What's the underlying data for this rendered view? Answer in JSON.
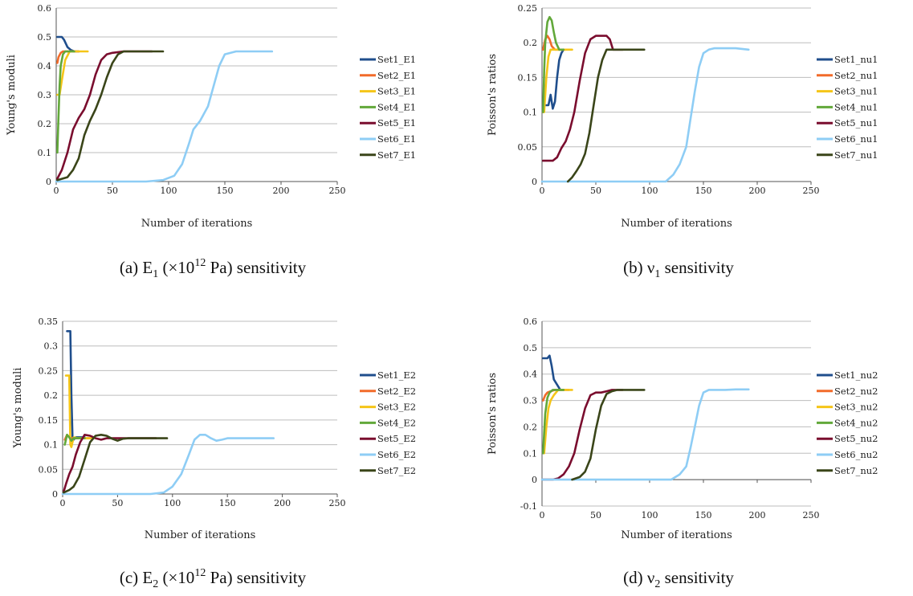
{
  "colors": {
    "Set1": "#1f4e8c",
    "Set2": "#f26b2a",
    "Set3": "#f5c518",
    "Set4": "#62a83a",
    "Set5": "#7a0d2e",
    "Set6": "#8ecdf5",
    "Set7": "#3a4519"
  },
  "chart_data": [
    {
      "type": "line",
      "ylabel": "Young's moduli",
      "xlabel": "Number  of iterations",
      "caption_letter": "(a)",
      "caption_symbol": "E",
      "caption_sub": "1",
      "caption_rest_1": " (×10",
      "caption_sup": "12",
      "caption_rest_2": " Pa) sensitivity",
      "xlim": [
        0,
        250
      ],
      "ylim": [
        0,
        0.6
      ],
      "xticks": [
        "0",
        "50",
        "100",
        "150",
        "200",
        "250"
      ],
      "yticks": [
        "0",
        "0.1",
        "0.2",
        "0.3",
        "0.4",
        "0.5",
        "0.6"
      ],
      "series": [
        {
          "name": "Set1_E1",
          "color_key": "Set1",
          "x": [
            1,
            5,
            7,
            10,
            13,
            16,
            20
          ],
          "y": [
            0.5,
            0.5,
            0.49,
            0.465,
            0.455,
            0.45,
            0.45
          ]
        },
        {
          "name": "Set2_E1",
          "color_key": "Set2",
          "x": [
            1,
            2,
            4,
            6,
            10,
            15,
            20
          ],
          "y": [
            0.41,
            0.43,
            0.445,
            0.45,
            0.45,
            0.45,
            0.45
          ]
        },
        {
          "name": "Set3_E1",
          "color_key": "Set3",
          "x": [
            1,
            3,
            5,
            8,
            12,
            18,
            28
          ],
          "y": [
            0.3,
            0.3,
            0.35,
            0.42,
            0.45,
            0.45,
            0.45
          ]
        },
        {
          "name": "Set4_E1",
          "color_key": "Set4",
          "x": [
            1,
            2,
            3,
            4,
            6,
            8,
            12,
            16
          ],
          "y": [
            0.1,
            0.22,
            0.33,
            0.4,
            0.44,
            0.45,
            0.45,
            0.45
          ]
        },
        {
          "name": "Set5_E1",
          "color_key": "Set5",
          "x": [
            1,
            5,
            10,
            15,
            20,
            25,
            30,
            35,
            40,
            45,
            50,
            60,
            70,
            80,
            85
          ],
          "y": [
            0.01,
            0.04,
            0.1,
            0.18,
            0.22,
            0.25,
            0.3,
            0.37,
            0.42,
            0.44,
            0.445,
            0.45,
            0.45,
            0.45,
            0.45
          ]
        },
        {
          "name": "Set6_E1",
          "color_key": "Set6",
          "x": [
            0,
            80,
            95,
            105,
            112,
            118,
            122,
            128,
            135,
            140,
            145,
            150,
            160,
            175,
            192
          ],
          "y": [
            0,
            0,
            0.005,
            0.02,
            0.06,
            0.13,
            0.18,
            0.21,
            0.26,
            0.33,
            0.4,
            0.44,
            0.45,
            0.45,
            0.45
          ]
        },
        {
          "name": "Set7_E1",
          "color_key": "Set7",
          "x": [
            1,
            10,
            15,
            20,
            25,
            30,
            35,
            40,
            45,
            50,
            55,
            60,
            70,
            80,
            95
          ],
          "y": [
            0.005,
            0.015,
            0.04,
            0.08,
            0.16,
            0.21,
            0.25,
            0.3,
            0.36,
            0.41,
            0.44,
            0.45,
            0.45,
            0.45,
            0.45
          ]
        }
      ]
    },
    {
      "type": "line",
      "ylabel": "Poisson's ratios",
      "xlabel": "Number of iterations",
      "caption_letter": "(b)",
      "caption_symbol": "ν",
      "caption_sub": "1",
      "caption_rest_1": " sensitivity",
      "caption_sup": "",
      "caption_rest_2": "",
      "xlim": [
        0,
        250
      ],
      "ylim": [
        0,
        0.25
      ],
      "xticks": [
        "0",
        "50",
        "100",
        "150",
        "200",
        "250"
      ],
      "yticks": [
        "0",
        "0.05",
        "0.1",
        "0.15",
        "0.2",
        "0.25"
      ],
      "series": [
        {
          "name": "Set1_nu1",
          "color_key": "Set1",
          "x": [
            1,
            4,
            6,
            8,
            10,
            12,
            14,
            16,
            18,
            20
          ],
          "y": [
            0.11,
            0.11,
            0.11,
            0.125,
            0.105,
            0.115,
            0.15,
            0.175,
            0.185,
            0.19
          ]
        },
        {
          "name": "Set2_nu1",
          "color_key": "Set2",
          "x": [
            1,
            3,
            5,
            7,
            9,
            12,
            16,
            22
          ],
          "y": [
            0.19,
            0.205,
            0.21,
            0.205,
            0.195,
            0.19,
            0.19,
            0.19
          ]
        },
        {
          "name": "Set3_nu1",
          "color_key": "Set3",
          "x": [
            1,
            2,
            4,
            6,
            8,
            12,
            18,
            28
          ],
          "y": [
            0.1,
            0.1,
            0.15,
            0.18,
            0.19,
            0.19,
            0.19,
            0.19
          ]
        },
        {
          "name": "Set4_nu1",
          "color_key": "Set4",
          "x": [
            1,
            2,
            3,
            5,
            7,
            9,
            11,
            13,
            16,
            20
          ],
          "y": [
            0.1,
            0.16,
            0.2,
            0.23,
            0.237,
            0.232,
            0.215,
            0.2,
            0.19,
            0.19
          ]
        },
        {
          "name": "Set5_nu1",
          "color_key": "Set5",
          "x": [
            1,
            10,
            14,
            18,
            22,
            26,
            30,
            35,
            40,
            45,
            50,
            55,
            60,
            63,
            66,
            70,
            75
          ],
          "y": [
            0.03,
            0.03,
            0.035,
            0.048,
            0.058,
            0.075,
            0.1,
            0.145,
            0.185,
            0.205,
            0.21,
            0.21,
            0.21,
            0.205,
            0.19,
            0.19,
            0.19
          ]
        },
        {
          "name": "Set6_nu1",
          "color_key": "Set6",
          "x": [
            0,
            115,
            122,
            128,
            134,
            138,
            142,
            146,
            150,
            155,
            160,
            170,
            180,
            192
          ],
          "y": [
            0,
            0,
            0.01,
            0.025,
            0.05,
            0.09,
            0.13,
            0.165,
            0.185,
            0.19,
            0.192,
            0.192,
            0.192,
            0.19
          ]
        },
        {
          "name": "Set7_nu1",
          "color_key": "Set7",
          "x": [
            24,
            28,
            32,
            36,
            40,
            44,
            48,
            52,
            56,
            60,
            65,
            75,
            85,
            95
          ],
          "y": [
            0,
            0.006,
            0.015,
            0.025,
            0.04,
            0.07,
            0.11,
            0.15,
            0.175,
            0.19,
            0.19,
            0.19,
            0.19,
            0.19
          ]
        }
      ]
    },
    {
      "type": "line",
      "ylabel": "Young's moduli",
      "xlabel": "Number of iterations",
      "caption_letter": "(c)",
      "caption_symbol": "E",
      "caption_sub": "2",
      "caption_rest_1": " (×10",
      "caption_sup": "12",
      "caption_rest_2": " Pa) sensitivity",
      "xlim": [
        0,
        250
      ],
      "ylim": [
        0,
        0.35
      ],
      "xticks": [
        "0",
        "50",
        "100",
        "150",
        "200",
        "250"
      ],
      "yticks": [
        "0",
        "0.05",
        "0.1",
        "0.15",
        "0.2",
        "0.25",
        "0.3",
        "0.35"
      ],
      "series": [
        {
          "name": "Set1_E2",
          "color_key": "Set1",
          "x": [
            4,
            7,
            8,
            9,
            10,
            12,
            16,
            20
          ],
          "y": [
            0.33,
            0.33,
            0.2,
            0.115,
            0.11,
            0.115,
            0.115,
            0.115
          ]
        },
        {
          "name": "Set2_E2",
          "color_key": "Set2",
          "x": [
            2,
            4,
            6,
            8,
            12,
            18,
            25
          ],
          "y": [
            0.11,
            0.12,
            0.115,
            0.113,
            0.113,
            0.113,
            0.113
          ]
        },
        {
          "name": "Set3_E2",
          "color_key": "Set3",
          "x": [
            3,
            6,
            7,
            8,
            10,
            14,
            20,
            28
          ],
          "y": [
            0.24,
            0.24,
            0.1,
            0.095,
            0.115,
            0.113,
            0.113,
            0.113
          ]
        },
        {
          "name": "Set4_E2",
          "color_key": "Set4",
          "x": [
            2,
            4,
            6,
            8,
            10,
            14,
            20
          ],
          "y": [
            0.1,
            0.12,
            0.115,
            0.108,
            0.113,
            0.113,
            0.113
          ]
        },
        {
          "name": "Set5_E2",
          "color_key": "Set5",
          "x": [
            1,
            3,
            6,
            9,
            12,
            16,
            20,
            25,
            30,
            35,
            40,
            50,
            60,
            75,
            85
          ],
          "y": [
            0.005,
            0.02,
            0.04,
            0.055,
            0.08,
            0.105,
            0.12,
            0.118,
            0.113,
            0.11,
            0.113,
            0.113,
            0.113,
            0.113,
            0.113
          ]
        },
        {
          "name": "Set6_E2",
          "color_key": "Set6",
          "x": [
            0,
            80,
            92,
            100,
            108,
            115,
            120,
            125,
            130,
            135,
            140,
            145,
            150,
            160,
            175,
            192
          ],
          "y": [
            0,
            0,
            0.003,
            0.015,
            0.04,
            0.08,
            0.11,
            0.12,
            0.12,
            0.113,
            0.108,
            0.11,
            0.113,
            0.113,
            0.113,
            0.113
          ]
        },
        {
          "name": "Set7_E2",
          "color_key": "Set7",
          "x": [
            1,
            6,
            10,
            15,
            20,
            25,
            30,
            35,
            40,
            45,
            50,
            55,
            60,
            70,
            80,
            95
          ],
          "y": [
            0.003,
            0.008,
            0.015,
            0.035,
            0.07,
            0.105,
            0.118,
            0.12,
            0.118,
            0.112,
            0.108,
            0.112,
            0.113,
            0.113,
            0.113,
            0.113
          ]
        }
      ]
    },
    {
      "type": "line",
      "ylabel": "Poisson's ratios",
      "xlabel": "Number of iterations",
      "caption_letter": "(d)",
      "caption_symbol": "ν",
      "caption_sub": "2",
      "caption_rest_1": " sensitivity",
      "caption_sup": "",
      "caption_rest_2": "",
      "xlim": [
        0,
        250
      ],
      "ylim": [
        -0.1,
        0.6
      ],
      "xticks": [
        "0",
        "50",
        "100",
        "150",
        "200",
        "250"
      ],
      "yticks": [
        "-0.1",
        "0",
        "0.1",
        "0.2",
        "0.3",
        "0.4",
        "0.5",
        "0.6"
      ],
      "series": [
        {
          "name": "Set1_nu2",
          "color_key": "Set1",
          "x": [
            1,
            5,
            7,
            9,
            11,
            14,
            17,
            20
          ],
          "y": [
            0.46,
            0.46,
            0.47,
            0.43,
            0.38,
            0.36,
            0.34,
            0.34
          ]
        },
        {
          "name": "Set2_nu2",
          "color_key": "Set2",
          "x": [
            1,
            3,
            5,
            8,
            12,
            18,
            25
          ],
          "y": [
            0.3,
            0.32,
            0.33,
            0.335,
            0.34,
            0.34,
            0.34
          ]
        },
        {
          "name": "Set3_nu2",
          "color_key": "Set3",
          "x": [
            2,
            4,
            6,
            8,
            11,
            15,
            22,
            28
          ],
          "y": [
            0.1,
            0.2,
            0.27,
            0.3,
            0.32,
            0.34,
            0.34,
            0.34
          ]
        },
        {
          "name": "Set4_nu2",
          "color_key": "Set4",
          "x": [
            1,
            2,
            3,
            5,
            7,
            10,
            14,
            20
          ],
          "y": [
            0.1,
            0.18,
            0.25,
            0.31,
            0.33,
            0.34,
            0.34,
            0.34
          ]
        },
        {
          "name": "Set5_nu2",
          "color_key": "Set5",
          "x": [
            1,
            10,
            15,
            20,
            25,
            30,
            35,
            40,
            45,
            50,
            55,
            60,
            65,
            70,
            75
          ],
          "y": [
            0,
            0,
            0.005,
            0.02,
            0.05,
            0.1,
            0.19,
            0.27,
            0.32,
            0.33,
            0.33,
            0.335,
            0.34,
            0.34,
            0.34
          ]
        },
        {
          "name": "Set6_nu2",
          "color_key": "Set6",
          "x": [
            0,
            120,
            128,
            134,
            138,
            142,
            146,
            150,
            155,
            160,
            170,
            180,
            192
          ],
          "y": [
            0,
            0,
            0.02,
            0.05,
            0.12,
            0.2,
            0.28,
            0.33,
            0.34,
            0.34,
            0.34,
            0.342,
            0.342
          ]
        },
        {
          "name": "Set7_nu2",
          "color_key": "Set7",
          "x": [
            28,
            35,
            40,
            45,
            50,
            55,
            60,
            65,
            70,
            80,
            95
          ],
          "y": [
            0,
            0.01,
            0.03,
            0.08,
            0.19,
            0.28,
            0.325,
            0.335,
            0.34,
            0.34,
            0.34
          ]
        }
      ]
    }
  ]
}
